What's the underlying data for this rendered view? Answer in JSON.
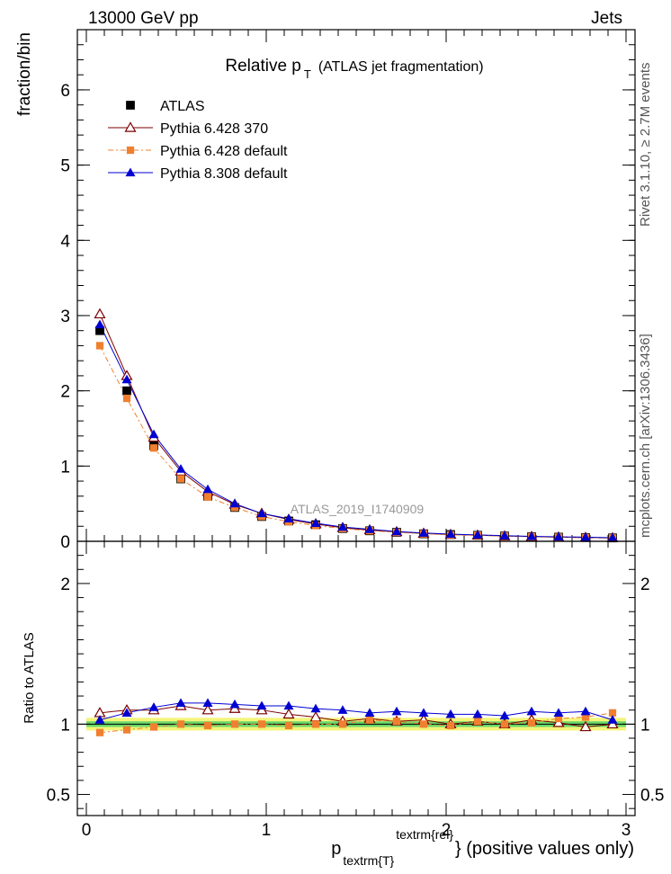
{
  "header": {
    "left_label": "13000 GeV pp",
    "right_label": "Jets",
    "side_label_top": "Rivet 3.1.10, ≥ 2.7M events",
    "side_label_bottom": "mcplots.cern.ch [arXiv:1306.3436]",
    "analysis_tag": "ATLAS_2019_I1740909"
  },
  "chart_data": [
    {
      "type": "scatter",
      "title_main": "Relative p",
      "title_sub": "T",
      "title_tail": "(ATLAS jet fragmentation)",
      "ylabel": "fraction/bin",
      "xlim": [
        -0.05,
        3.05
      ],
      "ylim": [
        0,
        6.8
      ],
      "yticks": [
        0,
        1,
        2,
        3,
        4,
        5,
        6
      ],
      "ytick_labels": [
        "0",
        "1",
        "2",
        "3",
        "4",
        "5",
        "6"
      ],
      "x": [
        0.075,
        0.225,
        0.375,
        0.525,
        0.675,
        0.825,
        0.975,
        1.125,
        1.275,
        1.425,
        1.575,
        1.725,
        1.875,
        2.025,
        2.175,
        2.325,
        2.475,
        2.625,
        2.775,
        2.925
      ],
      "series": [
        {
          "name": "ATLAS",
          "color": "#000000",
          "marker": "square",
          "values": [
            2.8,
            2.0,
            1.27,
            0.83,
            0.6,
            0.45,
            0.33,
            0.27,
            0.22,
            0.17,
            0.14,
            0.12,
            0.1,
            0.09,
            0.08,
            0.07,
            0.06,
            0.055,
            0.05,
            0.045
          ]
        },
        {
          "name": "Pythia 6.428 370",
          "color": "#7a0000",
          "marker": "open-triangle",
          "values": [
            3.02,
            2.2,
            1.38,
            0.93,
            0.66,
            0.49,
            0.37,
            0.29,
            0.23,
            0.18,
            0.15,
            0.125,
            0.105,
            0.09,
            0.08,
            0.07,
            0.062,
            0.055,
            0.05,
            0.045
          ]
        },
        {
          "name": "Pythia 6.428 default",
          "color": "#f08030",
          "marker": "square",
          "values": [
            2.6,
            1.9,
            1.24,
            0.83,
            0.59,
            0.45,
            0.33,
            0.26,
            0.21,
            0.17,
            0.14,
            0.12,
            0.1,
            0.085,
            0.08,
            0.07,
            0.06,
            0.055,
            0.05,
            0.045
          ]
        },
        {
          "name": "Pythia 8.308 default",
          "color": "#0000d0",
          "marker": "triangle",
          "values": [
            2.88,
            2.15,
            1.42,
            0.96,
            0.69,
            0.5,
            0.37,
            0.3,
            0.24,
            0.19,
            0.16,
            0.13,
            0.11,
            0.095,
            0.085,
            0.075,
            0.065,
            0.06,
            0.055,
            0.048
          ]
        }
      ]
    },
    {
      "type": "line",
      "xlabel_main": "p",
      "xlabel_sub": "textrm{T}",
      "xlabel_sup": "textrm{rel}",
      "xlabel_tail": "} (positive values only)",
      "ylabel": "Ratio to ATLAS",
      "xlim": [
        -0.05,
        3.05
      ],
      "ylim": [
        0.35,
        2.3
      ],
      "xticks": [
        0,
        1,
        2,
        3
      ],
      "xtick_labels": [
        "0",
        "1",
        "2",
        "3"
      ],
      "yticks": [
        0.5,
        1,
        2
      ],
      "ytick_labels": [
        "0.5",
        "1",
        "2"
      ],
      "band_inner": 0.02,
      "band_outer": 0.045,
      "band_inner_color": "#6ad86a",
      "band_outer_color": "#f4f47a",
      "x": [
        0.075,
        0.225,
        0.375,
        0.525,
        0.675,
        0.825,
        0.975,
        1.125,
        1.275,
        1.425,
        1.575,
        1.725,
        1.875,
        2.025,
        2.175,
        2.325,
        2.475,
        2.625,
        2.775,
        2.925
      ],
      "series": [
        {
          "name": "Pythia 6.428 370",
          "color": "#7a0000",
          "marker": "open-triangle",
          "values": [
            1.08,
            1.1,
            1.1,
            1.13,
            1.1,
            1.11,
            1.1,
            1.07,
            1.05,
            1.02,
            1.04,
            1.02,
            1.03,
            1.0,
            1.02,
            1.0,
            1.03,
            1.01,
            0.98,
            1.0
          ]
        },
        {
          "name": "Pythia 6.428 default",
          "color": "#f08030",
          "marker": "square",
          "values": [
            0.94,
            0.96,
            0.98,
            1.0,
            0.99,
            1.0,
            1.0,
            0.99,
            1.0,
            1.0,
            1.03,
            1.02,
            1.0,
            0.99,
            1.02,
            1.0,
            1.01,
            1.04,
            1.05,
            1.08
          ]
        },
        {
          "name": "Pythia 8.308 default",
          "color": "#0000d0",
          "marker": "triangle",
          "values": [
            1.03,
            1.08,
            1.12,
            1.15,
            1.15,
            1.14,
            1.13,
            1.13,
            1.11,
            1.1,
            1.08,
            1.09,
            1.08,
            1.07,
            1.07,
            1.06,
            1.09,
            1.08,
            1.09,
            1.03
          ]
        }
      ]
    }
  ]
}
